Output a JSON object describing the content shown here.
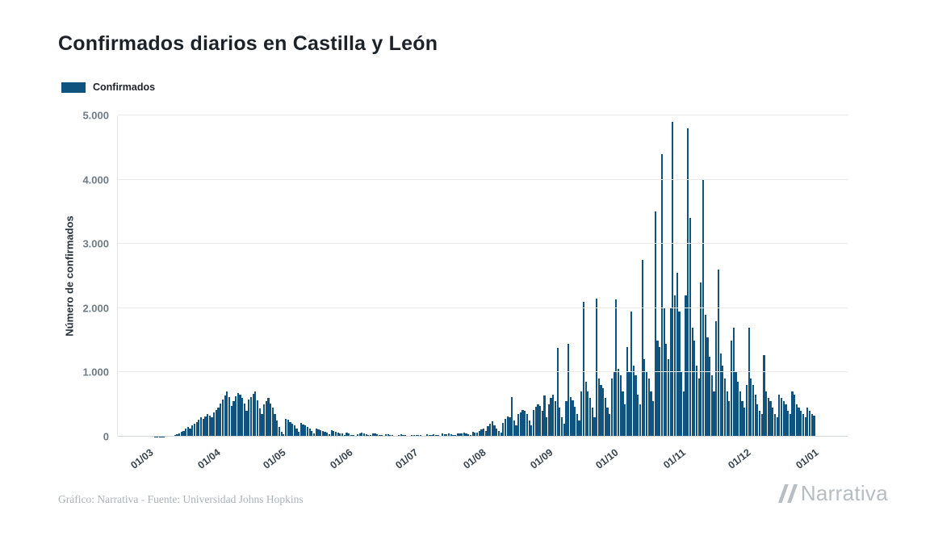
{
  "page": {
    "title": "Confirmados diarios en Castilla y León",
    "footer_credit": "Gráfico: Narrativa - Fuente: Universidad Johns Hopkins",
    "brand": "Narrativa"
  },
  "legend": {
    "label": "Confirmados",
    "color": "#0f537e"
  },
  "chart_data": {
    "type": "bar",
    "title": "Confirmados diarios en Castilla y León",
    "xlabel": "",
    "ylabel": "Número de confirmados",
    "ylim": [
      0,
      5000
    ],
    "grid": true,
    "legend_position": "top-left",
    "y_ticks": [
      0,
      1000,
      2000,
      3000,
      4000,
      5000
    ],
    "y_tick_labels": [
      "0",
      "1.000",
      "2.000",
      "3.000",
      "4.000",
      "5.000"
    ],
    "x_tick_labels": [
      "01/03",
      "01/04",
      "01/05",
      "01/06",
      "01/07",
      "01/08",
      "01/09",
      "01/10",
      "01/11",
      "01/12",
      "01/01"
    ],
    "x_tick_indices": [
      0,
      31,
      61,
      92,
      122,
      153,
      184,
      214,
      245,
      275,
      306
    ],
    "series": [
      {
        "name": "Confirmados",
        "color": "#0f537e",
        "start_label": "01/03",
        "end_label": "01/01",
        "values": [
          0,
          0,
          1,
          1,
          2,
          3,
          5,
          8,
          10,
          14,
          18,
          25,
          35,
          50,
          70,
          90,
          120,
          150,
          130,
          180,
          200,
          230,
          260,
          300,
          280,
          320,
          350,
          330,
          300,
          380,
          420,
          450,
          520,
          580,
          640,
          700,
          620,
          480,
          550,
          630,
          680,
          650,
          600,
          520,
          400,
          580,
          620,
          660,
          700,
          560,
          440,
          350,
          500,
          550,
          600,
          520,
          450,
          350,
          250,
          150,
          80,
          40,
          280,
          260,
          230,
          200,
          170,
          130,
          70,
          210,
          190,
          170,
          150,
          120,
          90,
          50,
          130,
          110,
          100,
          90,
          75,
          60,
          35,
          95,
          85,
          75,
          65,
          55,
          45,
          25,
          65,
          55,
          25,
          20,
          15,
          40,
          55,
          65,
          50,
          40,
          30,
          20,
          45,
          50,
          40,
          30,
          25,
          18,
          35,
          40,
          30,
          25,
          18,
          12,
          30,
          35,
          28,
          22,
          15,
          10,
          25,
          20,
          20,
          30,
          25,
          15,
          10,
          35,
          30,
          25,
          40,
          30,
          20,
          15,
          45,
          40,
          35,
          50,
          40,
          25,
          20,
          55,
          50,
          45,
          60,
          50,
          35,
          25,
          70,
          65,
          60,
          90,
          110,
          120,
          90,
          160,
          200,
          240,
          180,
          130,
          90,
          60,
          220,
          280,
          320,
          300,
          620,
          250,
          180,
          350,
          380,
          420,
          400,
          350,
          250,
          180,
          420,
          460,
          500,
          480,
          400,
          640,
          300,
          500,
          600,
          650,
          550,
          1380,
          450,
          300,
          200,
          550,
          1450,
          620,
          560,
          460,
          350,
          250,
          700,
          2100,
          850,
          700,
          600,
          450,
          300,
          2150,
          900,
          800,
          750,
          600,
          450,
          350,
          900,
          1000,
          2130,
          1050,
          950,
          700,
          500,
          1400,
          1000,
          1950,
          1100,
          950,
          650,
          500,
          2750,
          1200,
          1000,
          900,
          700,
          550,
          3500,
          1500,
          1400,
          4400,
          2000,
          1450,
          1200,
          2000,
          4900,
          2200,
          2550,
          1950,
          1000,
          700,
          2200,
          4800,
          3400,
          1700,
          1500,
          1100,
          900,
          2400,
          4000,
          1900,
          1550,
          1250,
          950,
          700,
          1800,
          2600,
          1300,
          1100,
          900,
          700,
          550,
          1500,
          1700,
          1000,
          850,
          700,
          550,
          450,
          800,
          1700,
          900,
          800,
          650,
          500,
          400,
          350,
          1270,
          700,
          600,
          550,
          450,
          350,
          300,
          650,
          600,
          550,
          500,
          400,
          350,
          700,
          650,
          500,
          450,
          400,
          350,
          300,
          450,
          400,
          350,
          330
        ]
      }
    ]
  }
}
